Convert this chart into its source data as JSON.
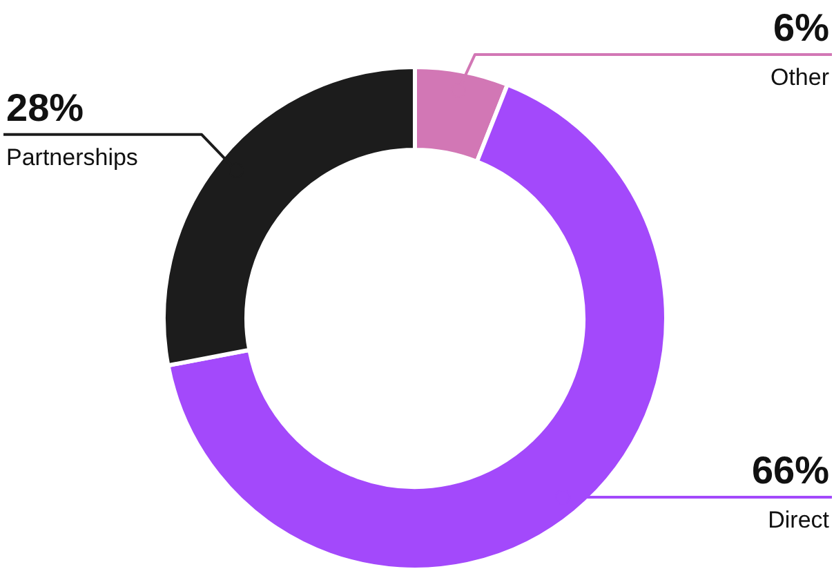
{
  "chart_data": {
    "type": "donut",
    "categories": [
      "Other",
      "Direct",
      "Partnerships"
    ],
    "values": [
      6,
      66,
      28
    ],
    "colors": [
      "#d277b5",
      "#a349fb",
      "#1c1c1c"
    ],
    "value_labels": [
      "6%",
      "66%",
      "28%"
    ]
  }
}
